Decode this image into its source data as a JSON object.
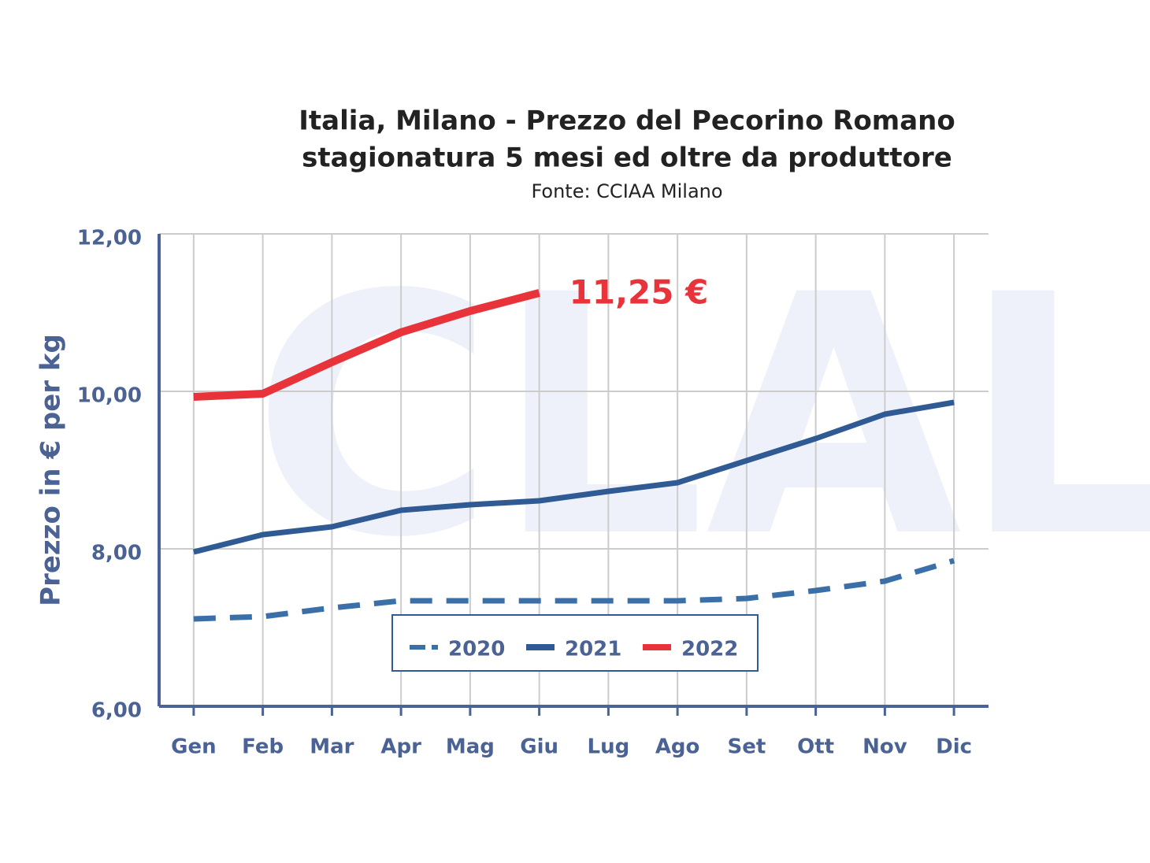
{
  "chart_data": {
    "type": "line",
    "title": "Italia, Milano - Prezzo del Pecorino Romano",
    "subtitle": "stagionatura 5 mesi ed oltre da produttore",
    "source": "Fonte: CCIAA Milano",
    "y_label": "Prezzo in € per kg",
    "annotation": "11,25 €",
    "categories": [
      "Gen",
      "Feb",
      "Mar",
      "Apr",
      "Mag",
      "Giu",
      "Lug",
      "Ago",
      "Set",
      "Ott",
      "Nov",
      "Dic"
    ],
    "series": [
      {
        "name": "2020",
        "color": "#3a6fa8",
        "dashed": true,
        "values": [
          7.11,
          7.14,
          7.25,
          7.34,
          7.34,
          7.34,
          7.34,
          7.34,
          7.37,
          7.47,
          7.59,
          7.85
        ]
      },
      {
        "name": "2021",
        "color": "#2f5a94",
        "dashed": false,
        "values": [
          7.96,
          8.18,
          8.28,
          8.49,
          8.56,
          8.61,
          8.73,
          8.84,
          9.12,
          9.4,
          9.71,
          9.86
        ]
      },
      {
        "name": "2022",
        "color": "#e8333a",
        "dashed": false,
        "values": [
          9.93,
          9.97,
          10.37,
          10.75,
          11.02,
          11.25,
          null,
          null,
          null,
          null,
          null,
          null
        ]
      }
    ],
    "ylim": [
      6,
      12
    ],
    "yticks": [
      {
        "value": 6,
        "label": "6,00"
      },
      {
        "value": 8,
        "label": "8,00"
      },
      {
        "value": 10,
        "label": "10,00"
      },
      {
        "value": 12,
        "label": "12,00"
      }
    ],
    "grid": true,
    "legend": "bottom"
  }
}
